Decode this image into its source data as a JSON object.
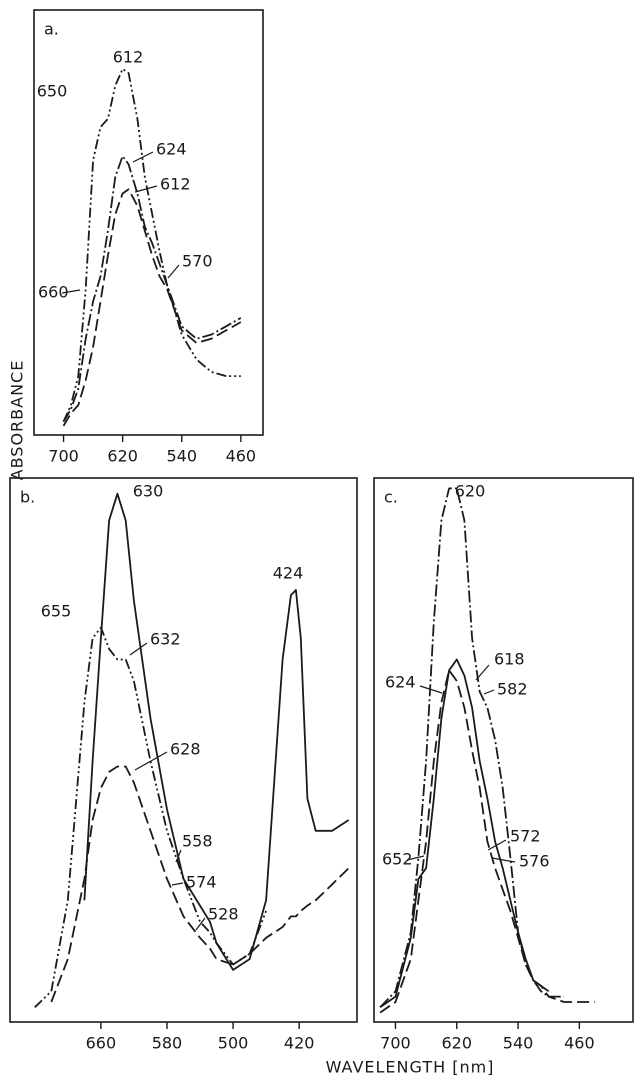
{
  "y_label": "ABSORBANCE",
  "x_label": "WAVELENGTH [nm]",
  "chart_data": [
    {
      "type": "line",
      "panel_label": "a.",
      "xlim": [
        740,
        430
      ],
      "ylim": [
        0,
        100
      ],
      "xticks": [
        700,
        620,
        540,
        460
      ],
      "x": [
        700,
        690,
        680,
        670,
        660,
        650,
        640,
        630,
        620,
        612,
        600,
        590,
        580,
        570,
        560,
        550,
        540,
        520,
        500,
        480,
        460
      ],
      "series": [
        {
          "style": "dash-dot-dot",
          "color": "#1a1a1a",
          "values": [
            2,
            6,
            13,
            34,
            65,
            73,
            75,
            83,
            87,
            86,
            75,
            61,
            52,
            43,
            35,
            29,
            23,
            17,
            14,
            13,
            13
          ]
        },
        {
          "style": "dash-dot",
          "color": "#1a1a1a",
          "values": [
            2,
            5,
            10,
            22,
            31,
            37,
            48,
            61,
            66,
            64,
            57,
            49,
            45,
            40,
            35,
            30,
            25,
            22,
            23,
            25,
            27
          ]
        },
        {
          "style": "dashed",
          "color": "#1a1a1a",
          "values": [
            1,
            4,
            6,
            12,
            20,
            31,
            42,
            52,
            57,
            58,
            54,
            48,
            42,
            37,
            34,
            29,
            24,
            21,
            22,
            24,
            26
          ]
        }
      ],
      "annotations": [
        "650",
        "612",
        "624",
        "612",
        "570",
        "660"
      ]
    },
    {
      "type": "line",
      "panel_label": "b.",
      "xlim": [
        770,
        350
      ],
      "ylim": [
        0,
        100
      ],
      "xticks": [
        660,
        580,
        500,
        420
      ],
      "x": [
        740,
        720,
        700,
        680,
        670,
        660,
        650,
        640,
        630,
        620,
        600,
        580,
        560,
        540,
        528,
        520,
        500,
        480,
        460,
        440,
        430,
        424,
        418,
        410,
        400,
        380,
        360
      ],
      "series": [
        {
          "style": "solid",
          "color": "#1a1a1a",
          "values": [
            null,
            null,
            null,
            22,
            48,
            71,
            93,
            98,
            93,
            78,
            56,
            39,
            26,
            21,
            18,
            14,
            9,
            11,
            22,
            67,
            79,
            80,
            71,
            41,
            35,
            35,
            37
          ]
        },
        {
          "style": "dash-dot-dot",
          "color": "#1a1a1a",
          "values": [
            2,
            5,
            22,
            59,
            71,
            73,
            69,
            67,
            67,
            63,
            48,
            35,
            26,
            18,
            16,
            14,
            10,
            12,
            20,
            null,
            null,
            null,
            null,
            null,
            null,
            null,
            null
          ]
        },
        {
          "style": "dashed",
          "color": "#1a1a1a",
          "values": [
            null,
            3,
            11,
            26,
            37,
            43,
            46,
            47,
            47,
            44,
            35,
            26,
            19,
            15,
            13,
            11,
            10,
            12,
            15,
            17,
            19,
            19,
            20,
            21,
            22,
            25,
            28
          ]
        }
      ],
      "annotations": [
        "655",
        "630",
        "424",
        "632",
        "628",
        "558",
        "574",
        "528"
      ]
    },
    {
      "type": "line",
      "panel_label": "c.",
      "xlim": [
        728,
        390
      ],
      "ylim": [
        0,
        100
      ],
      "xticks": [
        700,
        620,
        540,
        460
      ],
      "x": [
        720,
        700,
        680,
        670,
        660,
        650,
        640,
        630,
        620,
        610,
        600,
        590,
        580,
        570,
        560,
        550,
        540,
        530,
        520,
        510,
        500,
        480,
        460,
        440
      ],
      "series": [
        {
          "style": "dash-dot",
          "color": "#1a1a1a",
          "values": [
            2,
            5,
            16,
            30,
            48,
            74,
            93,
            99,
            99,
            93,
            71,
            61,
            58,
            52,
            43,
            30,
            16,
            10,
            7,
            5,
            4,
            4,
            null,
            null
          ]
        },
        {
          "style": "solid",
          "color": "#1a1a1a",
          "values": [
            2,
            4,
            15,
            26,
            28,
            41,
            56,
            65,
            67,
            64,
            58,
            48,
            41,
            33,
            28,
            22,
            16,
            11,
            7,
            6,
            5,
            null,
            null,
            null
          ]
        },
        {
          "style": "dashed",
          "color": "#1a1a1a",
          "values": [
            1,
            3,
            11,
            22,
            33,
            48,
            59,
            65,
            63,
            58,
            50,
            43,
            33,
            28,
            24,
            20,
            15,
            10,
            7,
            6,
            4,
            3,
            3,
            3
          ]
        }
      ],
      "annotations": [
        "620",
        "618",
        "624",
        "582",
        "652",
        "572",
        "576"
      ]
    }
  ]
}
